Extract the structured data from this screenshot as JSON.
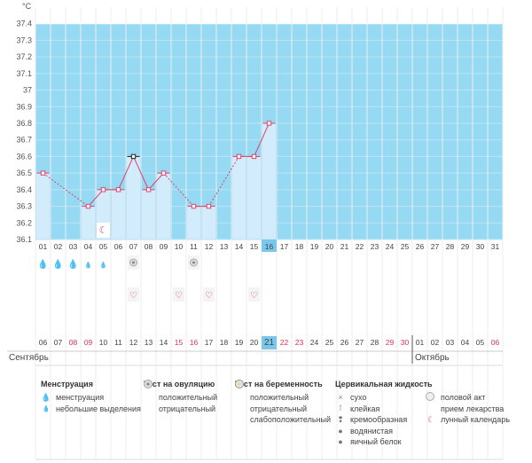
{
  "chart_data": {
    "type": "bar",
    "ylabel": "°C",
    "y_ticks": [
      "36.1",
      "36.2",
      "36.3",
      "36.4",
      "36.5",
      "36.6",
      "36.7",
      "36.8",
      "36.9",
      "37",
      "37.1",
      "37.2",
      "37.3",
      "37.4"
    ],
    "ylim": [
      36.1,
      37.5
    ],
    "categories": [
      "01",
      "02",
      "03",
      "04",
      "05",
      "06",
      "07",
      "08",
      "09",
      "10",
      "11",
      "12",
      "13",
      "14",
      "15",
      "16",
      "17",
      "18",
      "19",
      "20",
      "21",
      "22",
      "23",
      "24",
      "25",
      "26",
      "27",
      "28",
      "29",
      "30",
      "31"
    ],
    "values": [
      36.5,
      null,
      null,
      36.3,
      36.4,
      36.4,
      36.6,
      36.4,
      36.5,
      null,
      36.3,
      36.3,
      null,
      36.6,
      36.6,
      36.8,
      null,
      null,
      null,
      null,
      null,
      null,
      null,
      null,
      null,
      null,
      null,
      null,
      null,
      null,
      null
    ],
    "current_day_index": 15,
    "grid": true
  },
  "dates": {
    "labels": [
      "06",
      "07",
      "08",
      "09",
      "10",
      "11",
      "12",
      "13",
      "14",
      "15",
      "16",
      "17",
      "18",
      "19",
      "20",
      "21",
      "22",
      "23",
      "24",
      "25",
      "26",
      "27",
      "28",
      "29",
      "30",
      "01",
      "02",
      "03",
      "04",
      "05",
      "06"
    ],
    "red_indices": [
      2,
      3,
      9,
      10,
      16,
      17,
      23,
      24,
      30
    ],
    "month_left": "Сентябрь",
    "month_right": "Октябрь"
  },
  "rows": {
    "menstruation": [
      "full",
      "full",
      "full",
      "light",
      "light",
      null,
      null,
      null,
      null,
      null,
      null,
      null,
      null,
      null,
      null,
      null,
      null,
      null,
      null,
      null,
      null,
      null,
      null,
      null,
      null,
      null,
      null,
      null,
      null,
      null,
      null
    ],
    "ovulation_negative_indices": [
      6,
      10
    ],
    "intercourse_indices": [
      6,
      9,
      11,
      14
    ],
    "lunar_index": 4
  },
  "legend": {
    "menstruation": {
      "title": "Менструация",
      "items": [
        "менструация",
        "небольшие выделения"
      ]
    },
    "ovulation": {
      "title": "Тест на овуляцию",
      "items": [
        "положительный",
        "отрицательный"
      ]
    },
    "pregnancy": {
      "title": "Тест на беременность",
      "items": [
        "положительный",
        "отрицательный",
        "слабоположительный"
      ]
    },
    "cervical": {
      "title": "Цервикальная жидкость",
      "items": [
        "сухо",
        "клейкая",
        "кремообразная",
        "водянистая",
        "яичный белок"
      ]
    },
    "other": {
      "items": [
        "половой акт",
        "прием лекарства",
        "лунный календарь"
      ]
    }
  },
  "colors": {
    "band": "#96d9f2",
    "bar": "#d3ecfb",
    "bar_edge": "#a9d6f2",
    "line": "#e0426a",
    "highlight": "#79c7ea",
    "red_text": "#e0305a"
  }
}
